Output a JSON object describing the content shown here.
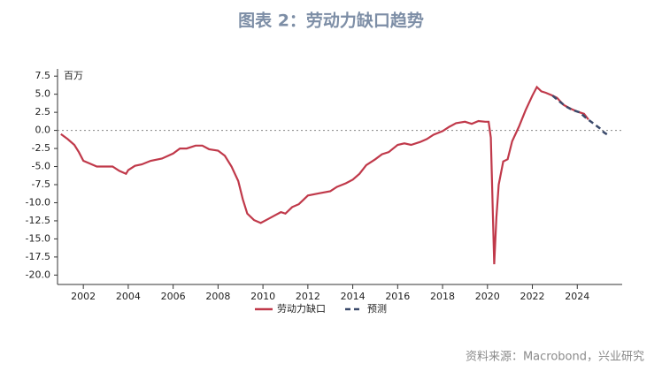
{
  "chart_data": {
    "type": "line",
    "title": "图表 2：劳动力缺口趋势",
    "y_unit": "百万",
    "source": "资料来源：Macrobond，兴业研究",
    "xlim": [
      2000.85,
      2026.0
    ],
    "xticks": [
      2002,
      2004,
      2006,
      2008,
      2010,
      2012,
      2014,
      2016,
      2018,
      2020,
      2022,
      2024
    ],
    "ylim": [
      -21.3,
      8.5
    ],
    "yticks": [
      7.5,
      {
        "value": 5,
        "label": "5.0"
      },
      2.5,
      {
        "value": 0,
        "label": "0.0"
      },
      -2.5,
      {
        "value": -5,
        "label": "-5.0"
      },
      -7.5,
      {
        "value": -10,
        "label": "-10.0"
      },
      -12.5,
      {
        "value": -15,
        "label": "-15.0"
      },
      -17.5,
      {
        "value": -20,
        "label": "-20.0"
      }
    ],
    "reference_line": 0,
    "series": [
      {
        "name": "劳动力缺口",
        "color": "#c0394a",
        "dashed": false,
        "x": [
          2001.0,
          2001.3,
          2001.6,
          2001.8,
          2002.0,
          2002.3,
          2002.6,
          2003.0,
          2003.3,
          2003.6,
          2003.9,
          2004.0,
          2004.3,
          2004.6,
          2005.0,
          2005.5,
          2006.0,
          2006.3,
          2006.6,
          2007.0,
          2007.3,
          2007.6,
          2008.0,
          2008.3,
          2008.6,
          2008.9,
          2009.1,
          2009.3,
          2009.6,
          2009.9,
          2010.2,
          2010.5,
          2010.8,
          2011.0,
          2011.3,
          2011.6,
          2012.0,
          2012.5,
          2013.0,
          2013.3,
          2013.7,
          2014.0,
          2014.3,
          2014.6,
          2015.0,
          2015.3,
          2015.6,
          2016.0,
          2016.3,
          2016.6,
          2017.0,
          2017.3,
          2017.6,
          2018.0,
          2018.3,
          2018.6,
          2019.0,
          2019.3,
          2019.6,
          2019.9,
          2020.05,
          2020.15,
          2020.3,
          2020.4,
          2020.5,
          2020.7,
          2020.9,
          2021.1,
          2021.4,
          2021.7,
          2022.0,
          2022.2,
          2022.4,
          2022.6,
          2022.9,
          2023.1,
          2023.4,
          2023.7,
          2024.0,
          2024.3,
          2024.5
        ],
        "values": [
          -0.5,
          -1.2,
          -2.0,
          -3.0,
          -4.2,
          -4.6,
          -5.0,
          -5.0,
          -5.0,
          -5.6,
          -6.0,
          -5.5,
          -4.9,
          -4.7,
          -4.2,
          -3.9,
          -3.2,
          -2.5,
          -2.5,
          -2.1,
          -2.1,
          -2.6,
          -2.8,
          -3.5,
          -5.0,
          -7.0,
          -9.5,
          -11.5,
          -12.4,
          -12.8,
          -12.3,
          -11.8,
          -11.3,
          -11.5,
          -10.6,
          -10.2,
          -9.0,
          -8.7,
          -8.4,
          -7.8,
          -7.3,
          -6.8,
          -6.0,
          -4.8,
          -4.0,
          -3.3,
          -3.0,
          -2.0,
          -1.8,
          -2.0,
          -1.6,
          -1.2,
          -0.6,
          -0.1,
          0.5,
          1.0,
          1.2,
          0.9,
          1.3,
          1.2,
          1.2,
          -1.0,
          -18.5,
          -12.0,
          -7.5,
          -4.3,
          -4.0,
          -1.5,
          0.5,
          2.8,
          4.8,
          6.0,
          5.4,
          5.2,
          4.8,
          4.5,
          3.5,
          3.0,
          2.6,
          2.3,
          1.5
        ]
      },
      {
        "name": "预测",
        "color": "#3b4a6b",
        "dashed": true,
        "x": [
          2022.9,
          2023.2,
          2023.5,
          2023.8,
          2024.1,
          2024.4,
          2024.7,
          2025.0,
          2025.2,
          2025.4
        ],
        "values": [
          4.8,
          4.0,
          3.3,
          2.8,
          2.5,
          1.7,
          1.0,
          0.3,
          -0.3,
          -0.7
        ]
      }
    ]
  }
}
